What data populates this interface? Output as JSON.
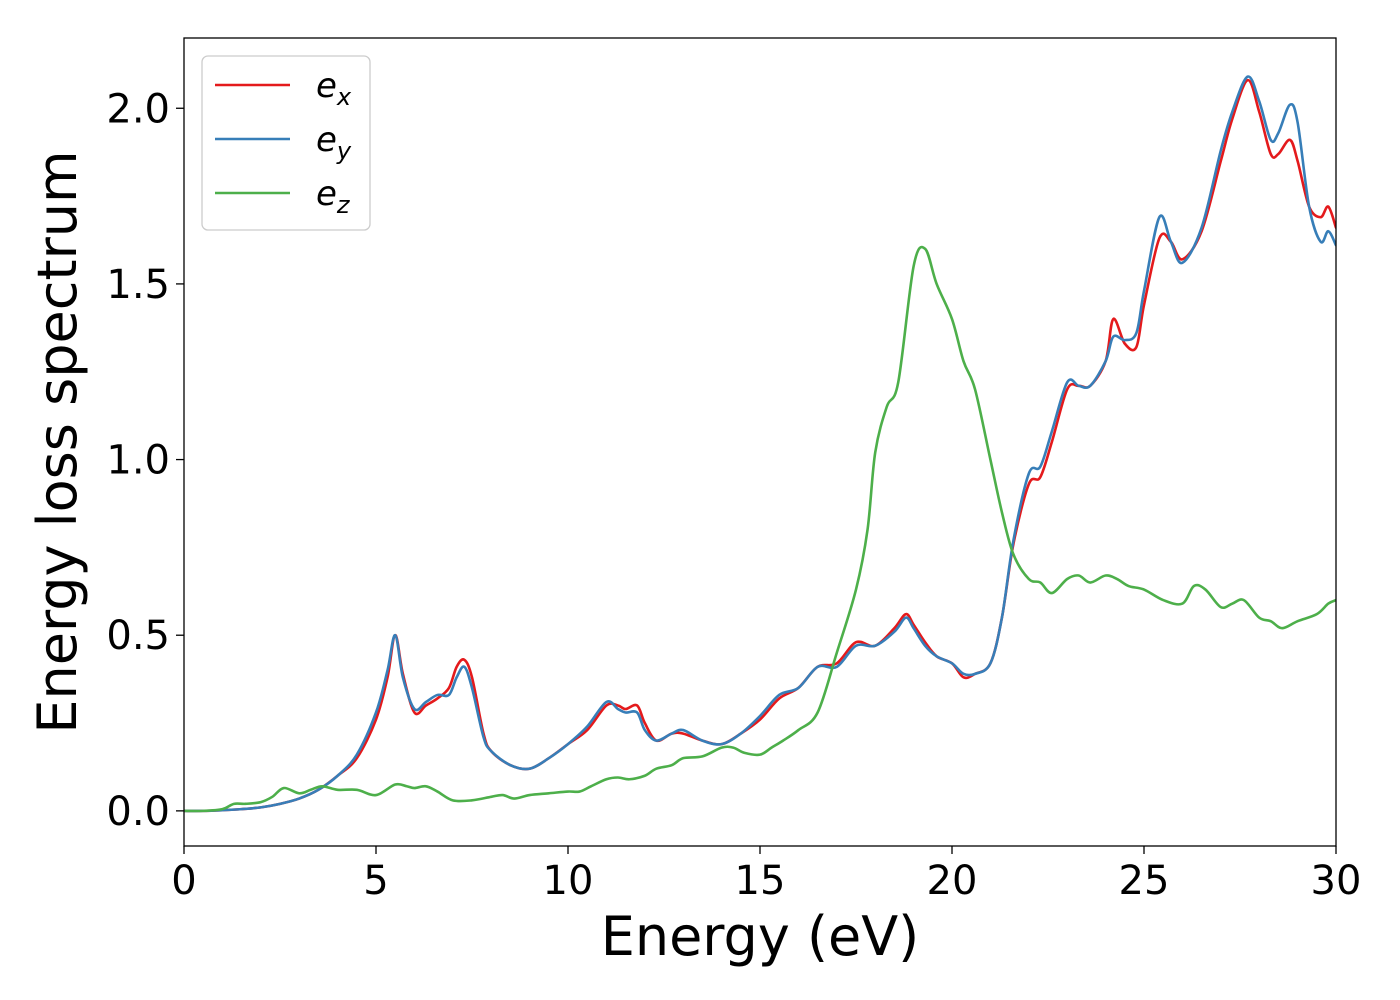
{
  "chart_data": {
    "type": "line",
    "xlabel": "Energy (eV)",
    "ylabel": "Energy loss spectrum",
    "xlim": [
      0,
      30
    ],
    "ylim": [
      -0.1,
      2.2
    ],
    "xticks": [
      0,
      5,
      10,
      15,
      20,
      25,
      30
    ],
    "xtick_labels": [
      "0",
      "5",
      "10",
      "15",
      "20",
      "25",
      "30"
    ],
    "yticks": [
      0.0,
      0.5,
      1.0,
      1.5,
      2.0
    ],
    "ytick_labels": [
      "0.0",
      "0.5",
      "1.0",
      "1.5",
      "2.0"
    ],
    "grid": false,
    "legend_position": "upper-left",
    "series": [
      {
        "name": "e_x",
        "legend_main": "e",
        "legend_sub": "x",
        "color": "#e41a1c",
        "x": [
          0,
          0.5,
          1,
          1.5,
          2,
          2.5,
          3,
          3.5,
          4,
          4.5,
          5,
          5.3,
          5.5,
          5.7,
          6,
          6.3,
          6.6,
          6.9,
          7.1,
          7.3,
          7.5,
          7.8,
          8,
          8.5,
          9,
          9.5,
          10,
          10.5,
          11,
          11.3,
          11.5,
          11.8,
          12,
          12.3,
          12.7,
          13,
          13.5,
          14,
          14.5,
          15,
          15.5,
          16,
          16.5,
          17,
          17.5,
          18,
          18.5,
          18.8,
          19,
          19.3,
          19.6,
          20,
          20.3,
          20.6,
          21,
          21.3,
          21.6,
          22,
          22.3,
          22.6,
          23,
          23.3,
          23.6,
          24,
          24.2,
          24.5,
          24.8,
          25,
          25.4,
          25.7,
          26,
          26.5,
          27,
          27.3,
          27.7,
          28,
          28.3,
          28.5,
          28.8,
          29,
          29.3,
          29.6,
          29.8,
          30
        ],
        "y": [
          0,
          0,
          0.002,
          0.005,
          0.01,
          0.02,
          0.035,
          0.06,
          0.1,
          0.15,
          0.26,
          0.38,
          0.5,
          0.39,
          0.28,
          0.3,
          0.32,
          0.35,
          0.41,
          0.43,
          0.38,
          0.22,
          0.17,
          0.13,
          0.12,
          0.15,
          0.19,
          0.23,
          0.3,
          0.3,
          0.29,
          0.3,
          0.25,
          0.2,
          0.22,
          0.22,
          0.2,
          0.19,
          0.22,
          0.26,
          0.32,
          0.35,
          0.41,
          0.42,
          0.48,
          0.47,
          0.52,
          0.56,
          0.53,
          0.48,
          0.44,
          0.42,
          0.38,
          0.39,
          0.42,
          0.55,
          0.76,
          0.93,
          0.95,
          1.05,
          1.2,
          1.21,
          1.21,
          1.28,
          1.4,
          1.33,
          1.32,
          1.44,
          1.63,
          1.62,
          1.57,
          1.65,
          1.85,
          1.97,
          2.08,
          1.99,
          1.87,
          1.87,
          1.91,
          1.85,
          1.72,
          1.69,
          1.72,
          1.66
        ]
      },
      {
        "name": "e_y",
        "legend_main": "e",
        "legend_sub": "y",
        "color": "#377eb8",
        "x": [
          0,
          0.5,
          1,
          1.5,
          2,
          2.5,
          3,
          3.5,
          4,
          4.5,
          5,
          5.3,
          5.5,
          5.7,
          6,
          6.3,
          6.6,
          6.9,
          7.1,
          7.3,
          7.5,
          7.8,
          8,
          8.5,
          9,
          9.5,
          10,
          10.5,
          11,
          11.3,
          11.5,
          11.8,
          12,
          12.3,
          12.7,
          13,
          13.5,
          14,
          14.5,
          15,
          15.5,
          16,
          16.5,
          17,
          17.5,
          18,
          18.5,
          18.8,
          19,
          19.3,
          19.6,
          20,
          20.3,
          20.6,
          21,
          21.3,
          21.6,
          22,
          22.3,
          22.6,
          23,
          23.3,
          23.6,
          24,
          24.2,
          24.5,
          24.8,
          25,
          25.4,
          25.7,
          26,
          26.5,
          27,
          27.3,
          27.7,
          28,
          28.3,
          28.5,
          28.8,
          29,
          29.3,
          29.6,
          29.8,
          30
        ],
        "y": [
          0,
          0,
          0.002,
          0.005,
          0.01,
          0.02,
          0.035,
          0.06,
          0.1,
          0.16,
          0.28,
          0.4,
          0.5,
          0.38,
          0.29,
          0.31,
          0.33,
          0.33,
          0.38,
          0.41,
          0.35,
          0.21,
          0.17,
          0.13,
          0.12,
          0.15,
          0.19,
          0.24,
          0.31,
          0.29,
          0.28,
          0.28,
          0.23,
          0.2,
          0.22,
          0.23,
          0.2,
          0.19,
          0.22,
          0.27,
          0.33,
          0.35,
          0.41,
          0.41,
          0.47,
          0.47,
          0.51,
          0.55,
          0.52,
          0.47,
          0.44,
          0.42,
          0.39,
          0.39,
          0.42,
          0.55,
          0.77,
          0.96,
          0.98,
          1.08,
          1.22,
          1.21,
          1.21,
          1.28,
          1.35,
          1.34,
          1.36,
          1.48,
          1.69,
          1.62,
          1.56,
          1.66,
          1.88,
          1.99,
          2.09,
          2.02,
          1.91,
          1.93,
          2.01,
          1.96,
          1.72,
          1.62,
          1.65,
          1.61
        ]
      },
      {
        "name": "e_z",
        "legend_main": "e",
        "legend_sub": "z",
        "color": "#4daf4a",
        "x": [
          0,
          0.5,
          1,
          1.3,
          1.6,
          2,
          2.3,
          2.6,
          3,
          3.3,
          3.6,
          4,
          4.5,
          5,
          5.5,
          5.8,
          6,
          6.3,
          6.6,
          7,
          7.5,
          8,
          8.3,
          8.6,
          9,
          9.5,
          10,
          10.3,
          10.6,
          11,
          11.3,
          11.6,
          12,
          12.3,
          12.7,
          13,
          13.5,
          14,
          14.3,
          14.6,
          15,
          15.3,
          15.6,
          16,
          16.5,
          17,
          17.5,
          17.8,
          18,
          18.3,
          18.6,
          19,
          19.3,
          19.6,
          20,
          20.3,
          20.6,
          21,
          21.3,
          21.6,
          22,
          22.3,
          22.6,
          23,
          23.3,
          23.6,
          24,
          24.3,
          24.6,
          25,
          25.5,
          26,
          26.3,
          26.6,
          27,
          27.3,
          27.6,
          28,
          28.3,
          28.6,
          29,
          29.5,
          29.8,
          30
        ],
        "y": [
          0,
          0,
          0.005,
          0.02,
          0.02,
          0.025,
          0.04,
          0.065,
          0.05,
          0.06,
          0.07,
          0.06,
          0.06,
          0.045,
          0.075,
          0.07,
          0.065,
          0.07,
          0.055,
          0.03,
          0.03,
          0.04,
          0.045,
          0.035,
          0.045,
          0.05,
          0.055,
          0.055,
          0.07,
          0.09,
          0.095,
          0.09,
          0.1,
          0.12,
          0.13,
          0.15,
          0.155,
          0.18,
          0.18,
          0.165,
          0.16,
          0.18,
          0.2,
          0.23,
          0.28,
          0.45,
          0.63,
          0.8,
          1.02,
          1.15,
          1.22,
          1.55,
          1.6,
          1.5,
          1.4,
          1.28,
          1.2,
          1.0,
          0.85,
          0.73,
          0.66,
          0.65,
          0.62,
          0.66,
          0.67,
          0.65,
          0.67,
          0.66,
          0.64,
          0.63,
          0.6,
          0.59,
          0.64,
          0.63,
          0.58,
          0.59,
          0.6,
          0.55,
          0.54,
          0.52,
          0.54,
          0.56,
          0.59,
          0.6
        ]
      }
    ]
  }
}
